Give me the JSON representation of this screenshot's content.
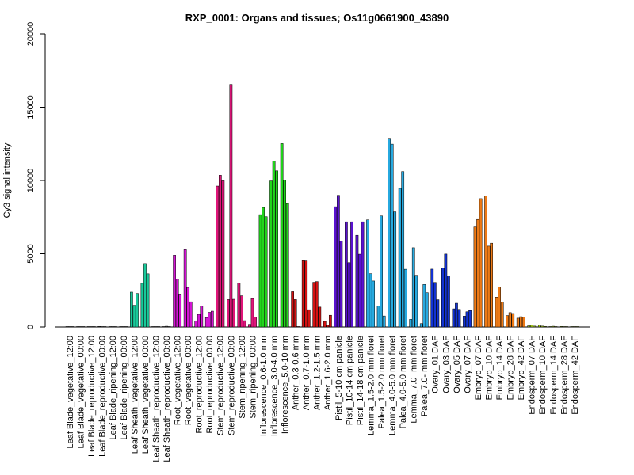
{
  "chart_data": {
    "type": "bar",
    "title": "RXP_0001: Organs and tissues; Os11g0661900_43890",
    "ylabel": "Cy3 signal intensity",
    "xlabel": "",
    "ylim": [
      0,
      20000
    ],
    "yticks": [
      0,
      5000,
      10000,
      15000,
      20000
    ],
    "grid": false,
    "categories": [
      "Leaf Blade_vegetative_12:00",
      "Leaf Blade_vegetative_00:00",
      "Leaf Blade_reproductive_12:00",
      "Leaf Blade_reproductive_00:00",
      "Leaf Blade_ripening_12:00",
      "Leaf Blade_ripening_00:00",
      "Leaf Sheath_vegetative_12:00",
      "Leaf Sheath_vegetative_00:00",
      "Leaf Sheath_reproductive_12:00",
      "Leaf Sheath_reproductive_00:00",
      "Root_vegetative_12:00",
      "Root_vegetative_00:00",
      "Root_reproductive_12:00",
      "Root_reproductive_00:00",
      "Stem_reproductive_12:00",
      "Stem_reproductive_00:00",
      "Stem_ripening_12:00",
      "Stem_ripening_00:00",
      "Inflorescence_0.6-1.0 mm",
      "Inflorescence_3.0-4.0 mm",
      "Inflorescence_5.0-10 mm",
      "Anther_0.3-0.6 mm",
      "Anther_0.7-1.0 mm",
      "Anther_1.2-1.5 mm",
      "Anther_1.6-2.0 mm",
      "Pistil_5-10 cm panicle",
      "Pistil_10-14 cm panicle",
      "Pistil_14-18 cm panicle",
      "Lemma_1.5-2.0 mm floret",
      "Palea_1.5-2.0 mm floret",
      "Lemma_4.0-5.0 mm floret",
      "Palea_4.0-5.0 mm floret",
      "Lemma_7.0- mm floret",
      "Palea_7.0- mm floret",
      "Ovary_01 DAF",
      "Ovary_03 DAF",
      "Ovary_05 DAF",
      "Ovary_07 DAF",
      "Embryo_07 DAF",
      "Embryo_10 DAF",
      "Embryo_14 DAF",
      "Embryo_28 DAF",
      "Embryo_42 DAF",
      "Endosperm_07 DAF",
      "Endosperm_10 DAF",
      "Endosperm_14 DAF",
      "Endosperm_28 DAF",
      "Endosperm_42 DAF"
    ],
    "values": [
      [
        30,
        30,
        30
      ],
      [
        30,
        30,
        30
      ],
      [
        30,
        30,
        30
      ],
      [
        40,
        30,
        30
      ],
      [
        30,
        30,
        30
      ],
      [
        30,
        30,
        30
      ],
      [
        2380,
        1480,
        2290
      ],
      [
        2980,
        4330,
        3630
      ],
      [
        30,
        30,
        30
      ],
      [
        30,
        50,
        30
      ],
      [
        4900,
        3260,
        2250
      ],
      [
        5280,
        2700,
        1720
      ],
      [
        420,
        860,
        1420
      ],
      [
        640,
        1000,
        1080
      ],
      [
        9620,
        10360,
        9980
      ],
      [
        1870,
        16560,
        1890
      ],
      [
        2990,
        2130,
        430
      ],
      [
        180,
        1940,
        680
      ],
      [
        7670,
        8160,
        7530
      ],
      [
        9970,
        11320,
        10660
      ],
      [
        12520,
        10040,
        8430
      ],
      [
        2410,
        1870,
        30
      ],
      [
        4530,
        4510,
        1180
      ],
      [
        3050,
        3100,
        1360
      ],
      [
        380,
        140,
        800
      ],
      [
        8210,
        8990,
        5860
      ],
      [
        7180,
        4390,
        7180
      ],
      [
        6260,
        4970,
        7180
      ],
      [
        7310,
        3640,
        3140
      ],
      [
        1420,
        7580,
        750
      ],
      [
        12880,
        12480,
        7860
      ],
      [
        9460,
        10610,
        3940
      ],
      [
        520,
        5410,
        3530
      ],
      [
        230,
        2900,
        2340
      ],
      [
        3950,
        3040,
        1860
      ],
      [
        4020,
        4980,
        3480
      ],
      [
        1240,
        1620,
        1200
      ],
      [
        740,
        1040,
        1120
      ],
      [
        6830,
        7340,
        8760
      ],
      [
        8950,
        5520,
        5720
      ],
      [
        2040,
        2740,
        1700
      ],
      [
        780,
        980,
        920
      ],
      [
        600,
        700,
        680
      ],
      [
        80,
        120,
        60
      ],
      [
        130,
        60,
        40
      ],
      [
        30,
        50,
        30
      ],
      [
        40,
        30,
        30
      ],
      [
        30,
        30,
        30
      ]
    ],
    "colors": [
      "#5b5b5b",
      "#5b5b5b",
      "#5b5b5b",
      "#5b5b5b",
      "#5b5b5b",
      "#5b5b5b",
      "#18c99a",
      "#18c99a",
      "#5b5b5b",
      "#5b5b5b",
      "#d414d4",
      "#d414d4",
      "#d414d4",
      "#d414d4",
      "#e0157a",
      "#e0157a",
      "#e0157a",
      "#e0157a",
      "#22d61c",
      "#22d61c",
      "#22d61c",
      "#d41212",
      "#d41212",
      "#d41212",
      "#d41212",
      "#5a12d0",
      "#5a12d0",
      "#5a12d0",
      "#27a9df",
      "#27a9df",
      "#27a9df",
      "#27a9df",
      "#27a9df",
      "#27a9df",
      "#1233d4",
      "#1233d4",
      "#1233d4",
      "#1233d4",
      "#ee7a16",
      "#ee7a16",
      "#ee7a16",
      "#ee7a16",
      "#ee7a16",
      "#a6cd1a",
      "#a6cd1a",
      "#a6cd1a",
      "#a6cd1a",
      "#a6cd1a"
    ]
  }
}
